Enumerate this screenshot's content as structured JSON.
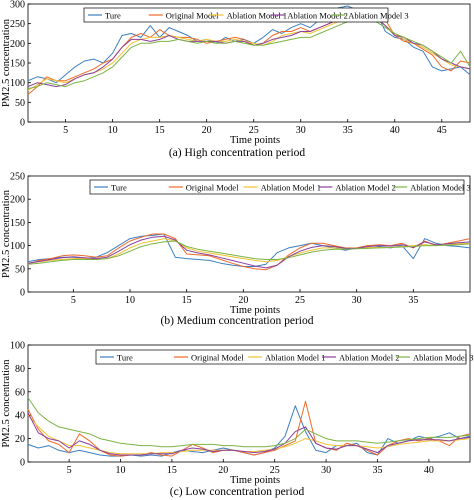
{
  "colors": {
    "Ture": "#3d7fc0",
    "Original Model": "#ee6b2a",
    "Ablation Model 1": "#f1c232",
    "Ablation Model 2": "#8b3f9e",
    "Ablation Model 3": "#7cb342"
  },
  "chart_data": [
    {
      "type": "line",
      "caption": "(a) High concentration period",
      "xlabel": "Time points",
      "ylabel": "PM2.5 concentration",
      "xlim": [
        1,
        48
      ],
      "ylim": [
        0,
        300
      ],
      "xticks": [
        5,
        10,
        15,
        20,
        25,
        30,
        35,
        40,
        45
      ],
      "yticks": [
        0,
        50,
        100,
        150,
        200,
        250,
        300
      ],
      "legend_position": "top",
      "grid": false,
      "x": [
        1,
        2,
        3,
        4,
        5,
        6,
        7,
        8,
        9,
        10,
        11,
        12,
        13,
        14,
        15,
        16,
        17,
        18,
        19,
        20,
        21,
        22,
        23,
        24,
        25,
        26,
        27,
        28,
        29,
        30,
        31,
        32,
        33,
        34,
        35,
        36,
        37,
        38,
        39,
        40,
        41,
        42,
        43,
        44,
        45,
        46,
        47,
        48
      ],
      "series": [
        {
          "name": "Ture",
          "values": [
            105,
            115,
            110,
            100,
            120,
            140,
            155,
            160,
            150,
            175,
            220,
            225,
            215,
            245,
            215,
            240,
            230,
            220,
            205,
            210,
            200,
            215,
            205,
            210,
            200,
            215,
            235,
            225,
            240,
            250,
            240,
            260,
            265,
            290,
            295,
            285,
            285,
            280,
            230,
            215,
            210,
            190,
            180,
            140,
            130,
            135,
            140,
            120
          ]
        },
        {
          "name": "Original Model",
          "values": [
            70,
            90,
            115,
            105,
            105,
            115,
            125,
            135,
            150,
            160,
            190,
            215,
            225,
            215,
            235,
            220,
            215,
            215,
            210,
            200,
            205,
            210,
            215,
            210,
            195,
            200,
            220,
            230,
            230,
            240,
            230,
            240,
            250,
            265,
            280,
            280,
            280,
            270,
            260,
            220,
            205,
            200,
            185,
            170,
            140,
            130,
            155,
            150
          ]
        },
        {
          "name": "Ablation Model 1",
          "values": [
            80,
            95,
            110,
            105,
            100,
            110,
            120,
            125,
            135,
            150,
            175,
            200,
            210,
            215,
            215,
            220,
            215,
            210,
            205,
            210,
            205,
            205,
            210,
            205,
            200,
            195,
            205,
            220,
            225,
            230,
            225,
            235,
            245,
            255,
            270,
            275,
            275,
            265,
            245,
            225,
            210,
            200,
            190,
            175,
            160,
            145,
            140,
            135
          ]
        },
        {
          "name": "Ablation Model 2",
          "values": [
            90,
            100,
            95,
            90,
            95,
            110,
            120,
            125,
            140,
            160,
            190,
            210,
            210,
            205,
            210,
            220,
            210,
            205,
            205,
            205,
            205,
            200,
            205,
            205,
            195,
            200,
            210,
            215,
            220,
            230,
            230,
            240,
            250,
            260,
            275,
            270,
            270,
            265,
            245,
            220,
            215,
            200,
            195,
            180,
            160,
            150,
            140,
            135
          ]
        },
        {
          "name": "Ablation Model 3",
          "values": [
            85,
            90,
            100,
            95,
            90,
            100,
            105,
            115,
            125,
            140,
            165,
            190,
            200,
            200,
            205,
            205,
            210,
            205,
            200,
            205,
            200,
            200,
            205,
            200,
            195,
            195,
            200,
            205,
            210,
            215,
            215,
            225,
            235,
            245,
            255,
            260,
            260,
            255,
            240,
            225,
            215,
            205,
            195,
            180,
            165,
            150,
            180,
            140
          ]
        }
      ]
    },
    {
      "type": "line",
      "caption": "(b) Medium concentration period",
      "xlabel": "Time points",
      "ylabel": "PM2.5 concentration",
      "xlim": [
        1,
        40
      ],
      "ylim": [
        0,
        250
      ],
      "xticks": [
        5,
        10,
        15,
        20,
        25,
        30,
        35
      ],
      "yticks": [
        0,
        50,
        100,
        150,
        200,
        250
      ],
      "legend_position": "top",
      "grid": false,
      "x": [
        1,
        2,
        3,
        4,
        5,
        6,
        7,
        8,
        9,
        10,
        11,
        12,
        13,
        14,
        15,
        16,
        17,
        18,
        19,
        20,
        21,
        22,
        23,
        24,
        25,
        26,
        27,
        28,
        29,
        30,
        31,
        32,
        33,
        34,
        35,
        36,
        37,
        38,
        39,
        40
      ],
      "series": [
        {
          "name": "Ture",
          "values": [
            65,
            70,
            72,
            75,
            75,
            72,
            75,
            85,
            100,
            115,
            120,
            122,
            125,
            75,
            72,
            70,
            68,
            62,
            58,
            55,
            55,
            60,
            85,
            95,
            100,
            105,
            100,
            95,
            90,
            95,
            100,
            98,
            95,
            100,
            72,
            115,
            105,
            100,
            98,
            95
          ]
        },
        {
          "name": "Original Model",
          "values": [
            60,
            68,
            72,
            78,
            80,
            78,
            75,
            78,
            95,
            110,
            118,
            125,
            125,
            115,
            82,
            80,
            78,
            70,
            62,
            55,
            50,
            48,
            58,
            80,
            95,
            105,
            105,
            100,
            95,
            95,
            100,
            102,
            100,
            105,
            95,
            110,
            100,
            105,
            110,
            115
          ]
        },
        {
          "name": "Ablation Model 1",
          "values": [
            62,
            65,
            68,
            70,
            72,
            72,
            70,
            72,
            82,
            95,
            105,
            110,
            115,
            110,
            95,
            88,
            84,
            80,
            76,
            72,
            68,
            65,
            68,
            76,
            84,
            90,
            95,
            95,
            94,
            95,
            96,
            96,
            96,
            98,
            100,
            102,
            100,
            102,
            104,
            105
          ]
        },
        {
          "name": "Ablation Model 2",
          "values": [
            62,
            66,
            70,
            74,
            76,
            74,
            72,
            75,
            88,
            102,
            112,
            118,
            120,
            112,
            90,
            84,
            80,
            74,
            68,
            62,
            56,
            52,
            58,
            76,
            88,
            96,
            100,
            98,
            94,
            94,
            98,
            100,
            99,
            102,
            96,
            108,
            102,
            104,
            106,
            108
          ]
        },
        {
          "name": "Ablation Model 3",
          "values": [
            60,
            62,
            65,
            68,
            70,
            70,
            70,
            72,
            78,
            88,
            98,
            104,
            108,
            110,
            98,
            92,
            88,
            84,
            80,
            76,
            72,
            70,
            70,
            74,
            80,
            86,
            90,
            92,
            92,
            93,
            94,
            95,
            96,
            97,
            98,
            100,
            100,
            101,
            102,
            104
          ]
        }
      ]
    },
    {
      "type": "line",
      "caption": "(c) Low concentration period",
      "xlabel": "Time points",
      "ylabel": "PM2.5 concentration",
      "xlim": [
        1,
        44
      ],
      "ylim": [
        0,
        100
      ],
      "xticks": [
        5,
        10,
        15,
        20,
        25,
        30,
        35,
        40
      ],
      "yticks": [
        0,
        20,
        40,
        60,
        80,
        100
      ],
      "legend_position": "top",
      "grid": false,
      "x": [
        1,
        2,
        3,
        4,
        5,
        6,
        7,
        8,
        9,
        10,
        11,
        12,
        13,
        14,
        15,
        16,
        17,
        18,
        19,
        20,
        21,
        22,
        23,
        24,
        25,
        26,
        27,
        28,
        29,
        30,
        31,
        32,
        33,
        34,
        35,
        36,
        37,
        38,
        39,
        40,
        41,
        42,
        43,
        44
      ],
      "series": [
        {
          "name": "Ture",
          "values": [
            15,
            12,
            14,
            10,
            8,
            10,
            8,
            6,
            5,
            5,
            6,
            5,
            6,
            5,
            8,
            10,
            9,
            8,
            10,
            12,
            10,
            8,
            6,
            8,
            12,
            22,
            48,
            26,
            10,
            8,
            14,
            14,
            16,
            8,
            6,
            20,
            16,
            18,
            22,
            20,
            22,
            25,
            20,
            22
          ]
        },
        {
          "name": "Original Model",
          "values": [
            45,
            28,
            18,
            15,
            8,
            24,
            18,
            10,
            6,
            5,
            6,
            6,
            8,
            6,
            5,
            10,
            15,
            12,
            8,
            10,
            10,
            8,
            6,
            8,
            10,
            14,
            18,
            52,
            16,
            12,
            10,
            16,
            14,
            10,
            6,
            14,
            18,
            20,
            18,
            20,
            18,
            14,
            22,
            24
          ]
        },
        {
          "name": "Ablation Model 1",
          "values": [
            40,
            30,
            22,
            18,
            14,
            14,
            12,
            10,
            8,
            7,
            7,
            7,
            7,
            8,
            8,
            9,
            10,
            10,
            10,
            10,
            10,
            9,
            9,
            10,
            11,
            13,
            16,
            20,
            18,
            15,
            14,
            14,
            14,
            13,
            12,
            13,
            15,
            16,
            17,
            18,
            18,
            18,
            19,
            20
          ]
        },
        {
          "name": "Ablation Model 2",
          "values": [
            42,
            25,
            20,
            18,
            12,
            18,
            15,
            10,
            7,
            6,
            6,
            6,
            7,
            7,
            7,
            10,
            12,
            11,
            9,
            10,
            10,
            9,
            8,
            9,
            11,
            16,
            26,
            30,
            16,
            12,
            11,
            14,
            14,
            11,
            8,
            14,
            16,
            18,
            19,
            19,
            19,
            18,
            20,
            21
          ]
        },
        {
          "name": "Ablation Model 3",
          "values": [
            55,
            42,
            35,
            30,
            28,
            26,
            24,
            20,
            18,
            16,
            15,
            14,
            14,
            13,
            13,
            14,
            15,
            15,
            15,
            14,
            14,
            13,
            13,
            13,
            14,
            16,
            20,
            28,
            24,
            20,
            18,
            18,
            18,
            17,
            16,
            17,
            18,
            19,
            20,
            21,
            21,
            21,
            22,
            23
          ]
        }
      ]
    }
  ]
}
